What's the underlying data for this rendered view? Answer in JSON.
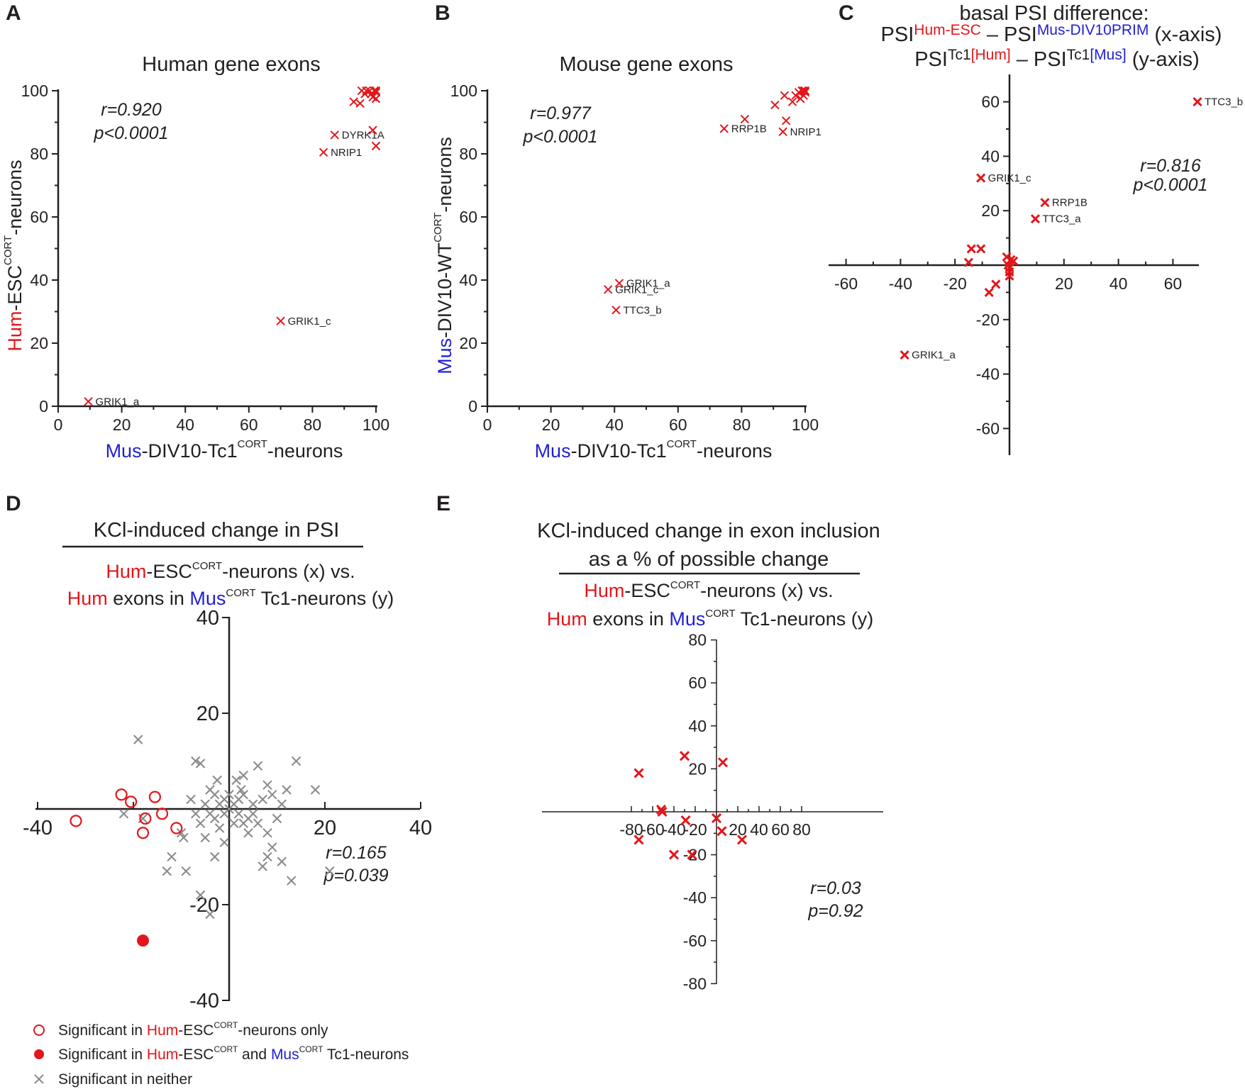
{
  "colors": {
    "red": "#e3161b",
    "blue": "#1f1fd6",
    "grey": "#8a8a8a",
    "text": "#231f20"
  },
  "chart_data": [
    {
      "panel": "A",
      "type": "scatter",
      "title": "Human gene exons",
      "xlabel_parts": [
        "Mus",
        "-DIV10-Tc1",
        "CORT",
        "-neurons"
      ],
      "ylabel_parts": [
        "Hum",
        "-ESC",
        "CORT",
        "-neurons"
      ],
      "xlim": [
        0,
        100
      ],
      "ylim": [
        0,
        100
      ],
      "xticks": [
        0,
        20,
        40,
        60,
        80,
        100
      ],
      "yticks": [
        0,
        20,
        40,
        60,
        80,
        100
      ],
      "stats": [
        "r=0.920",
        "p<0.0001"
      ],
      "points": [
        {
          "x": 9.5,
          "y": 1.5,
          "label": "GRIK1_a"
        },
        {
          "x": 70,
          "y": 27,
          "label": "GRIK1_c"
        },
        {
          "x": 83.5,
          "y": 80.5,
          "label": "NRIP1"
        },
        {
          "x": 87,
          "y": 86,
          "label": "DYRK1A"
        },
        {
          "x": 99,
          "y": 87.5,
          "label": ""
        },
        {
          "x": 100,
          "y": 82.5,
          "label": ""
        },
        {
          "x": 93,
          "y": 96.5,
          "label": ""
        },
        {
          "x": 95,
          "y": 96,
          "label": ""
        },
        {
          "x": 95.5,
          "y": 100,
          "label": ""
        },
        {
          "x": 96.5,
          "y": 99,
          "label": ""
        },
        {
          "x": 97,
          "y": 100,
          "label": ""
        },
        {
          "x": 98,
          "y": 100,
          "label": ""
        },
        {
          "x": 98.5,
          "y": 99,
          "label": ""
        },
        {
          "x": 99,
          "y": 98,
          "label": ""
        },
        {
          "x": 99.5,
          "y": 100,
          "label": ""
        },
        {
          "x": 100,
          "y": 97.5,
          "label": ""
        },
        {
          "x": 100,
          "y": 99.5,
          "label": ""
        },
        {
          "x": 100,
          "y": 100,
          "label": ""
        }
      ]
    },
    {
      "panel": "B",
      "type": "scatter",
      "title": "Mouse gene exons",
      "xlabel_parts": [
        "Mus",
        "-DIV10-Tc1",
        "CORT",
        "-neurons"
      ],
      "ylabel_parts": [
        "Mus",
        "-DIV10-WT",
        "CORT",
        "-neurons"
      ],
      "xlim": [
        0,
        100
      ],
      "ylim": [
        0,
        100
      ],
      "xticks": [
        0,
        20,
        40,
        60,
        80,
        100
      ],
      "yticks": [
        0,
        20,
        40,
        60,
        80,
        100
      ],
      "stats": [
        "r=0.977",
        "p<0.0001"
      ],
      "points": [
        {
          "x": 41.5,
          "y": 39,
          "label": "GRIK1_a"
        },
        {
          "x": 38,
          "y": 37,
          "label": "GRIK1_c"
        },
        {
          "x": 40.5,
          "y": 30.5,
          "label": "TTC3_b"
        },
        {
          "x": 74.5,
          "y": 88,
          "label": "RRP1B"
        },
        {
          "x": 81,
          "y": 91,
          "label": ""
        },
        {
          "x": 93,
          "y": 87,
          "label": "NRIP1"
        },
        {
          "x": 94,
          "y": 90.5,
          "label": ""
        },
        {
          "x": 90.5,
          "y": 95.5,
          "label": ""
        },
        {
          "x": 93.5,
          "y": 98.5,
          "label": ""
        },
        {
          "x": 96,
          "y": 96.5,
          "label": ""
        },
        {
          "x": 97,
          "y": 98.5,
          "label": ""
        },
        {
          "x": 98,
          "y": 99.5,
          "label": ""
        },
        {
          "x": 98.5,
          "y": 97.5,
          "label": ""
        },
        {
          "x": 99,
          "y": 100,
          "label": ""
        },
        {
          "x": 99.5,
          "y": 98.5,
          "label": ""
        },
        {
          "x": 100,
          "y": 99.5,
          "label": ""
        },
        {
          "x": 100,
          "y": 100,
          "label": ""
        },
        {
          "x": 99.5,
          "y": 100,
          "label": ""
        }
      ]
    },
    {
      "panel": "C",
      "type": "scatter",
      "title_line1": "basal PSI difference:",
      "title_line2": {
        "psi": "PSI",
        "sup1": "Hum-ESC",
        "minus": " – PSI",
        "sup2": "Mus-DIV10PRIM",
        "tail": " (x-axis)"
      },
      "title_line3": {
        "psi": "PSI",
        "sup_a": "Tc1",
        "sup_b": "[Hum]",
        "minus": " –  PSI",
        "sup_c": "Tc1",
        "sup_d": "[Mus]",
        "tail": " (y-axis)"
      },
      "xlim": [
        -70,
        70
      ],
      "ylim": [
        -70,
        70
      ],
      "xticks": [
        -60,
        -40,
        -20,
        20,
        40,
        60
      ],
      "yticks": [
        -60,
        -40,
        -20,
        20,
        40,
        60
      ],
      "stats": [
        "r=0.816",
        "p<0.0001"
      ],
      "points": [
        {
          "x": 69,
          "y": 60,
          "label": "TTC3_b"
        },
        {
          "x": -38.5,
          "y": -33,
          "label": "GRIK1_a"
        },
        {
          "x": -10.5,
          "y": 32,
          "label": "GRIK1_c"
        },
        {
          "x": 13,
          "y": 23,
          "label": "RRP1B"
        },
        {
          "x": 9.5,
          "y": 17,
          "label": "TTC3_a"
        },
        {
          "x": -14,
          "y": 6,
          "label": ""
        },
        {
          "x": -10.5,
          "y": 6,
          "label": ""
        },
        {
          "x": -15,
          "y": 1,
          "label": ""
        },
        {
          "x": -7.5,
          "y": -10,
          "label": ""
        },
        {
          "x": -5,
          "y": -7,
          "label": ""
        },
        {
          "x": -1,
          "y": 3,
          "label": ""
        },
        {
          "x": 0.5,
          "y": 2,
          "label": ""
        },
        {
          "x": 1.5,
          "y": 1.5,
          "label": ""
        },
        {
          "x": -0.5,
          "y": 0,
          "label": ""
        },
        {
          "x": 0,
          "y": -1,
          "label": ""
        },
        {
          "x": 0,
          "y": -2.5,
          "label": ""
        },
        {
          "x": 0,
          "y": -4,
          "label": ""
        }
      ]
    },
    {
      "panel": "D",
      "type": "scatter",
      "title": "KCl-induced change in PSI",
      "subtitle1": {
        "red": "Hum",
        "text": "-ESC",
        "sup": "CORT",
        "tail": "-neurons (x) vs."
      },
      "subtitle2": {
        "red": "Hum",
        "mid": " exons in ",
        "blue": "Mus",
        "sup": "CORT",
        "tail": " Tc1-neurons (y)"
      },
      "xlim": [
        -40,
        40
      ],
      "ylim": [
        -40,
        40
      ],
      "xticks": [
        -40,
        20,
        40
      ],
      "yticks": [
        40,
        20,
        -20,
        -40
      ],
      "stats": [
        "r=0.165",
        "p=0.039"
      ],
      "series": [
        {
          "name": "Significant in Hum-ESC-CORT-neurons only",
          "marker": "open-circle",
          "points": [
            [
              -32,
              -2.5
            ],
            [
              -22.5,
              3
            ],
            [
              -20.5,
              1.5
            ],
            [
              -17.5,
              -2
            ],
            [
              -15.5,
              2.5
            ],
            [
              -14,
              -1
            ],
            [
              -18,
              -5
            ],
            [
              -11,
              -4
            ]
          ]
        },
        {
          "name": "Significant in Hum-ESC-CORT and Mus-CORT Tc1-neurons",
          "marker": "filled-circle",
          "points": [
            [
              -18,
              -27.5
            ]
          ]
        },
        {
          "name": "Significant in neither",
          "marker": "grey-x",
          "points": [
            [
              -19,
              14.5
            ],
            [
              -22,
              -1
            ],
            [
              -18,
              -2
            ],
            [
              -12,
              -10
            ],
            [
              -13,
              -13
            ],
            [
              -10,
              -5
            ],
            [
              -9.5,
              -6
            ],
            [
              -7,
              10
            ],
            [
              -6,
              9.5
            ],
            [
              -8,
              2
            ],
            [
              -7,
              -1
            ],
            [
              -6,
              -3
            ],
            [
              -5,
              1
            ],
            [
              -4,
              4
            ],
            [
              -3,
              -2
            ],
            [
              -2,
              -4
            ],
            [
              -1,
              2
            ],
            [
              0,
              0
            ],
            [
              1,
              1
            ],
            [
              2,
              -1
            ],
            [
              3,
              3
            ],
            [
              4,
              -2
            ],
            [
              2.5,
              4
            ],
            [
              -2.5,
              6
            ],
            [
              1.5,
              6
            ],
            [
              5,
              1
            ],
            [
              6,
              -3
            ],
            [
              7,
              2
            ],
            [
              8,
              -5
            ],
            [
              9,
              -8
            ],
            [
              6,
              9
            ],
            [
              10,
              -2
            ],
            [
              11,
              1
            ],
            [
              9,
              3
            ],
            [
              -3,
              -10
            ],
            [
              -6,
              -18
            ],
            [
              -9,
              -13
            ],
            [
              7,
              -12
            ],
            [
              12,
              4
            ],
            [
              8,
              5
            ],
            [
              -4,
              -22
            ],
            [
              3,
              7
            ],
            [
              -1,
              -7
            ],
            [
              4,
              -5
            ],
            [
              -5,
              -6
            ],
            [
              1,
              -3
            ],
            [
              0,
              3
            ],
            [
              -2,
              1
            ],
            [
              2,
              2
            ],
            [
              -1,
              -1
            ],
            [
              3,
              -3
            ],
            [
              -3,
              3
            ],
            [
              5,
              -1
            ],
            [
              -4,
              -1
            ],
            [
              8,
              -10
            ],
            [
              13,
              -15
            ],
            [
              11,
              -11
            ],
            [
              14,
              10
            ],
            [
              18,
              4
            ],
            [
              21,
              -13
            ]
          ]
        }
      ],
      "legend": [
        {
          "marker": "open-circle",
          "pre": "Significant in ",
          "red": "Hum",
          "mid": "-ESC",
          "sup": "CORT",
          "tail": "-neurons only"
        },
        {
          "marker": "filled-circle",
          "pre": "Significant in ",
          "red": "Hum",
          "mid": "-ESC",
          "sup": "CORT",
          "and": " and ",
          "blue": "Mus",
          "sup2": "CORT",
          "tail": " Tc1-neurons"
        },
        {
          "marker": "grey-x",
          "pre": "Significant in neither"
        }
      ]
    },
    {
      "panel": "E",
      "type": "scatter",
      "title_line1": "KCl-induced change in exon inclusion",
      "title_line2": "as a % of possible change",
      "subtitle1": {
        "red": "Hum",
        "text": "-ESC",
        "sup": "CORT",
        "tail": "-neurons (x) vs."
      },
      "subtitle2": {
        "red": "Hum",
        "mid": " exons in ",
        "blue": "Mus",
        "sup": "CORT",
        "tail": " Tc1-neurons (y)"
      },
      "xlim": [
        -80,
        80
      ],
      "ylim": [
        -80,
        80
      ],
      "xticks": [
        -80,
        -60,
        -40,
        -20,
        20,
        40,
        60,
        80
      ],
      "yticks": [
        80,
        60,
        40,
        20,
        -20,
        -40,
        -60,
        -80
      ],
      "stats": [
        "r=0.03",
        "p=0.92"
      ],
      "points": [
        [
          -73,
          18
        ],
        [
          -73,
          -13
        ],
        [
          -52,
          1
        ],
        [
          -51,
          0
        ],
        [
          -30,
          26
        ],
        [
          -29,
          -4
        ],
        [
          -40,
          -20
        ],
        [
          -23,
          -20
        ],
        [
          0,
          -3
        ],
        [
          5,
          -9
        ],
        [
          6,
          23
        ],
        [
          24,
          -13
        ]
      ]
    }
  ]
}
